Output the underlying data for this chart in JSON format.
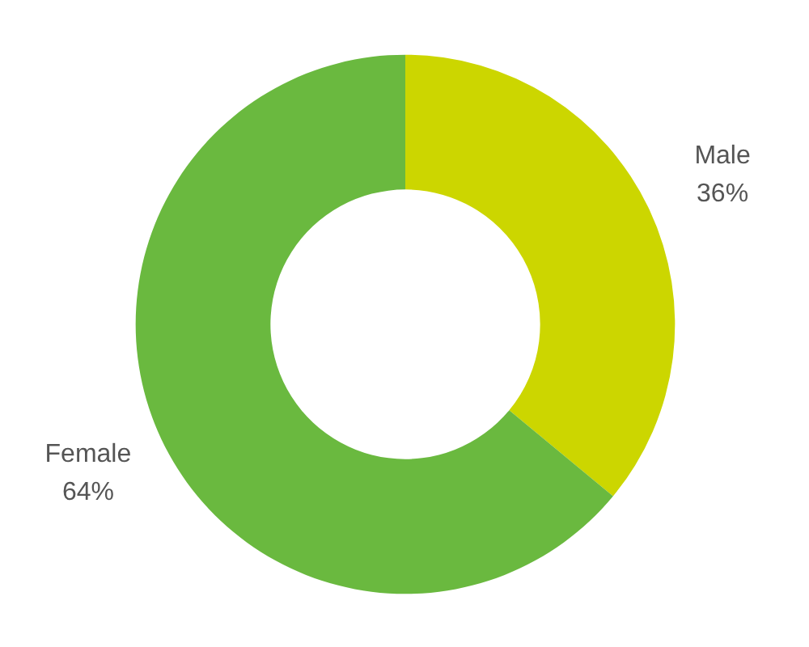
{
  "chart_data": {
    "type": "donut",
    "categories": [
      "Male",
      "Female"
    ],
    "values": [
      36,
      64
    ],
    "colors": [
      "#ccd600",
      "#6ab93f"
    ],
    "value_labels": [
      "36%",
      "64%"
    ]
  }
}
